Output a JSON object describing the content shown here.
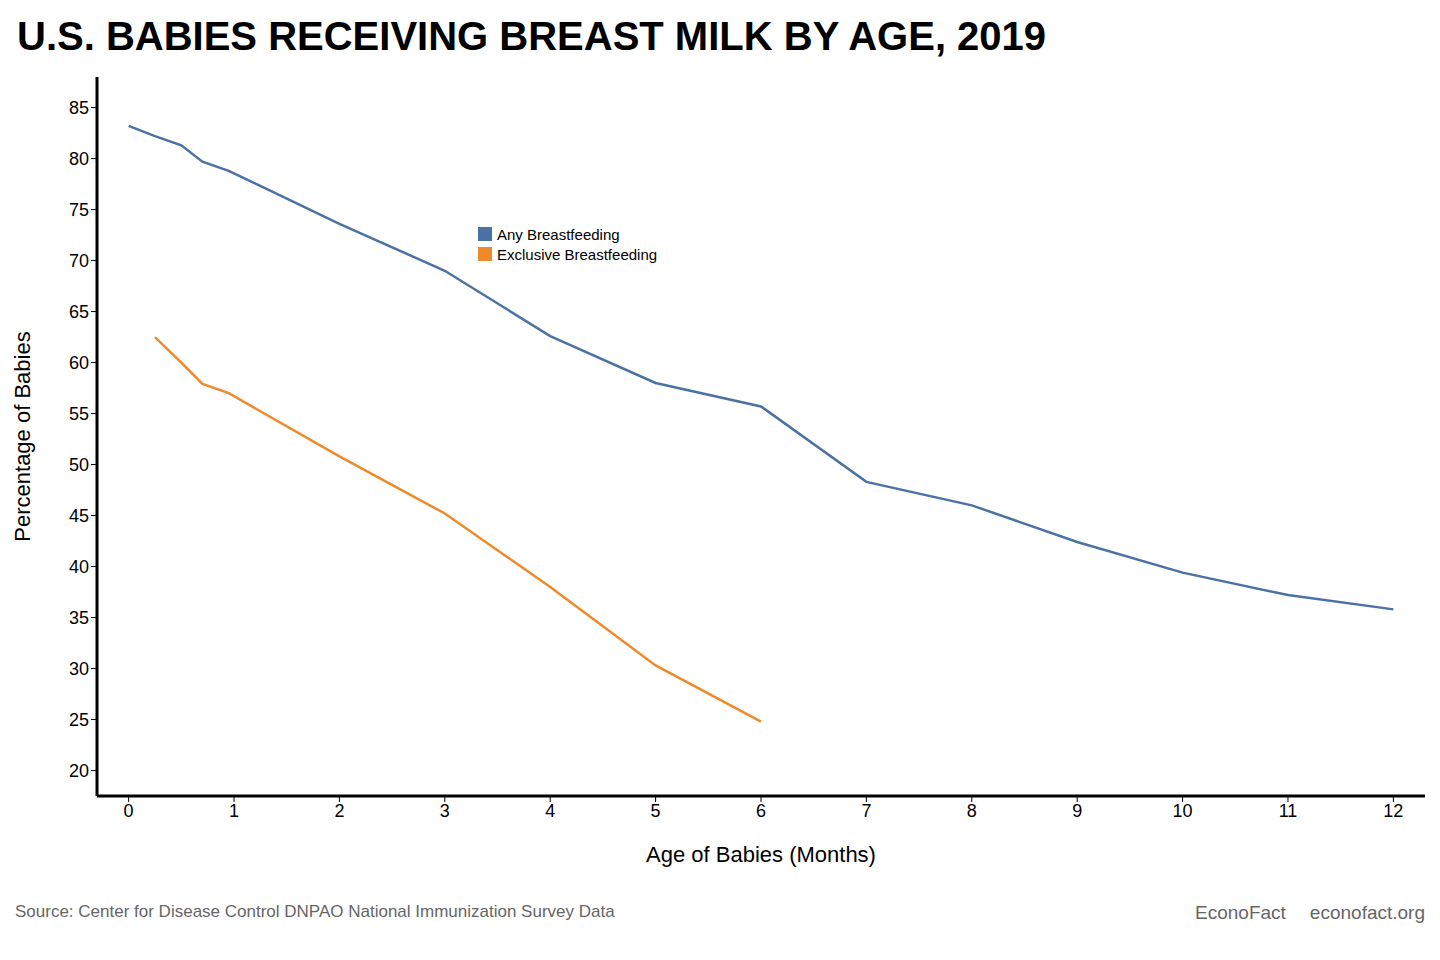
{
  "chart_data": {
    "type": "line",
    "title": "U.S. BABIES RECEIVING BREAST MILK BY AGE, 2019",
    "x_label": "Age of Babies (Months)",
    "y_label": "Percentage of Babies",
    "x": [
      0,
      0.25,
      0.5,
      0.7,
      0.95,
      2,
      3,
      4,
      5,
      6,
      7,
      8,
      9,
      10,
      11,
      12
    ],
    "series": [
      {
        "name": "Any Breastfeeding",
        "color": "#4a72a4",
        "values": [
          83.2,
          82.2,
          81.3,
          79.7,
          78.8,
          73.6,
          69.0,
          62.6,
          58.0,
          55.7,
          48.3,
          46.0,
          42.4,
          39.4,
          37.2,
          35.8
        ]
      },
      {
        "name": "Exclusive Breastfeeding",
        "color": "#ef8a2a",
        "values": [
          null,
          62.5,
          60.0,
          57.9,
          57.0,
          50.8,
          45.2,
          38.0,
          30.3,
          24.8,
          null,
          null,
          null,
          null,
          null,
          null
        ]
      }
    ],
    "xlim": [
      -0.3,
      12.3
    ],
    "xticks": [
      0,
      1,
      2,
      3,
      4,
      5,
      6,
      7,
      8,
      9,
      10,
      11,
      12
    ],
    "ylim": [
      17.5,
      88
    ],
    "yticks": [
      20,
      25,
      30,
      35,
      40,
      45,
      50,
      55,
      60,
      65,
      70,
      75,
      80,
      85
    ],
    "grid": false,
    "legend": "top",
    "source": "Source: Center for Disease Control DNPAO National Immunization Survey Data",
    "credits": [
      "EconoFact",
      "econofact.org"
    ]
  }
}
